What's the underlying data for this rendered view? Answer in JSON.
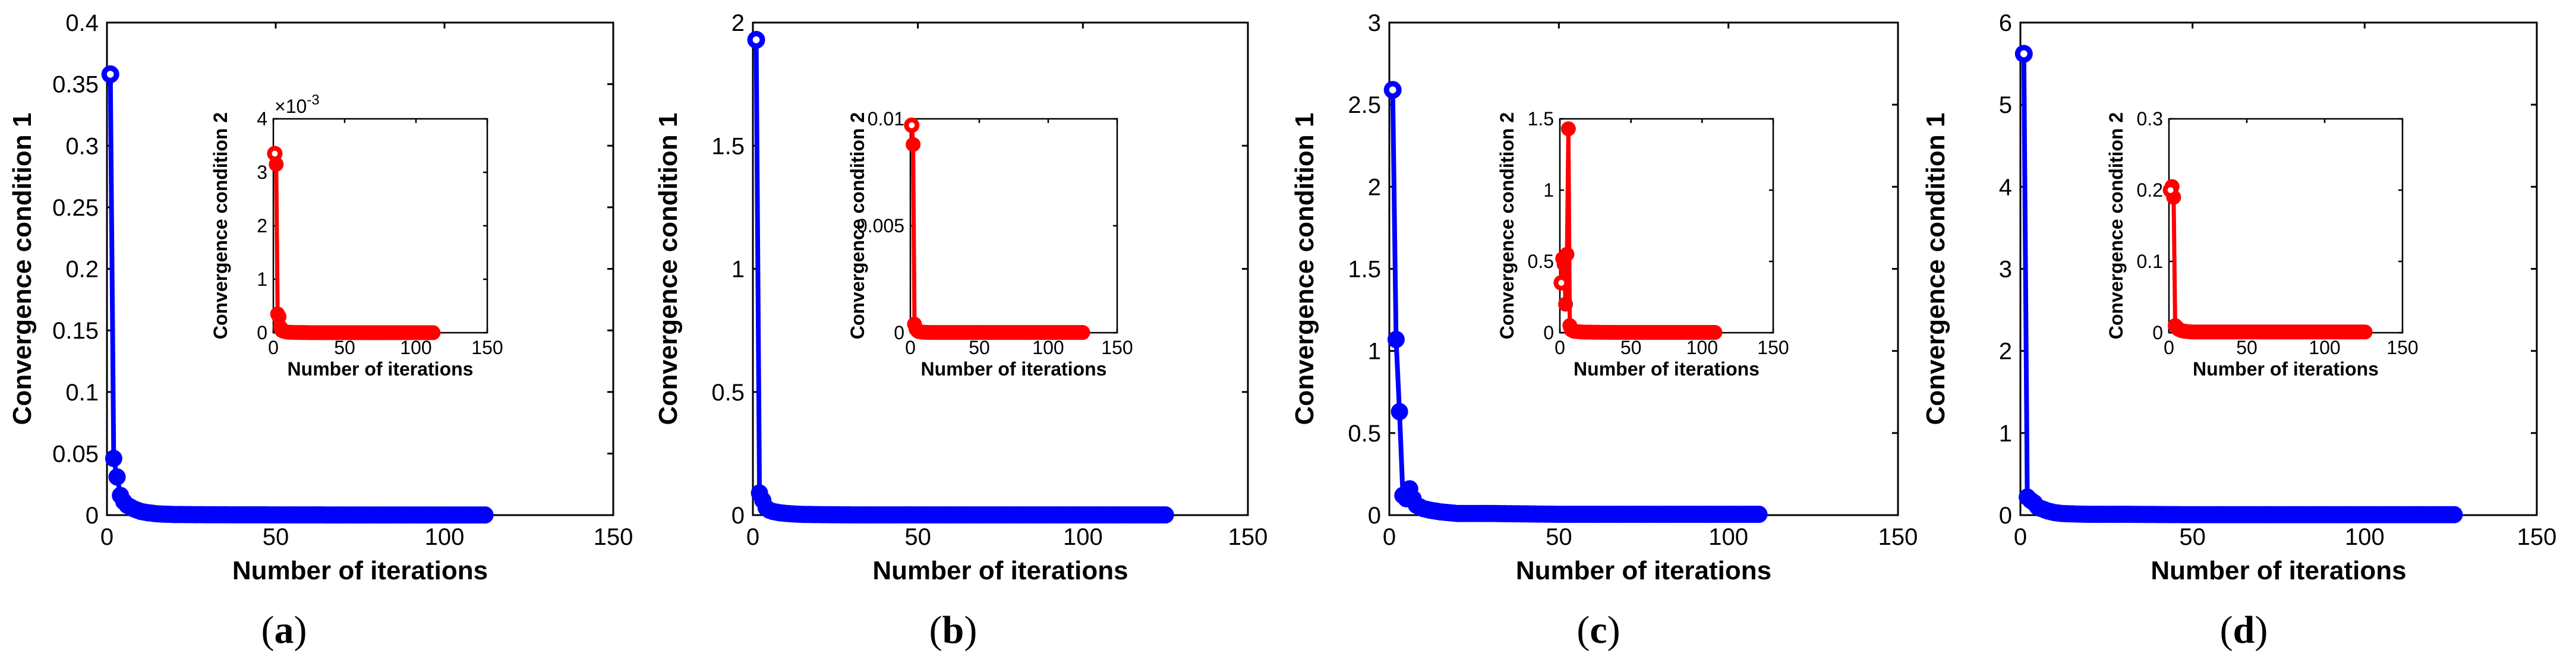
{
  "chart_data": [
    {
      "type": "line",
      "caption_letter": "a",
      "xlabel": "Number of iterations",
      "ylabel": "Convergence condition 1",
      "xlim": [
        0,
        150
      ],
      "ylim": [
        0,
        0.4
      ],
      "xticks": [
        "0",
        "50",
        "100",
        "150"
      ],
      "yticks": [
        "0",
        "0.05",
        "0.1",
        "0.15",
        "0.2",
        "0.25",
        "0.3",
        "0.35",
        "0.4"
      ],
      "series": [
        {
          "name": "Convergence condition 1",
          "color": "#0000ff",
          "x": [
            1,
            2,
            3,
            4,
            5,
            6,
            8,
            10,
            12,
            15,
            20,
            30,
            50,
            80,
            112
          ],
          "y": [
            0.358,
            0.046,
            0.031,
            0.016,
            0.011,
            0.008,
            0.005,
            0.003,
            0.002,
            0.001,
            0.0005,
            0.0003,
            0.0002,
            0.0001,
            0.0001
          ]
        }
      ],
      "inset": {
        "xlabel": "Number of iterations",
        "ylabel": "Convergence condition 2",
        "xlim": [
          0,
          150
        ],
        "ylim": [
          0,
          4
        ],
        "xticks": [
          "0",
          "50",
          "100",
          "150"
        ],
        "yticks": [
          "0",
          "1",
          "2",
          "3",
          "4"
        ],
        "exponent": "×10",
        "exponent_power": "-3",
        "series": [
          {
            "name": "Convergence condition 2",
            "color": "#ff0000",
            "x": [
              1,
              2,
              3,
              4,
              5,
              6,
              8,
              10,
              15,
              25,
              50,
              80,
              112
            ],
            "y": [
              3.35,
              3.15,
              0.35,
              0.3,
              0.1,
              0.04,
              0.02,
              0.01,
              0.005,
              0.002,
              0.001,
              0.001,
              0.001
            ]
          }
        ]
      }
    },
    {
      "type": "line",
      "caption_letter": "b",
      "xlabel": "Number of iterations",
      "ylabel": "Convergence condition 1",
      "xlim": [
        0,
        150
      ],
      "ylim": [
        0,
        2
      ],
      "xticks": [
        "0",
        "50",
        "100",
        "150"
      ],
      "yticks": [
        "0",
        "0.5",
        "1",
        "1.5",
        "2"
      ],
      "series": [
        {
          "name": "Convergence condition 1",
          "color": "#0000ff",
          "x": [
            1,
            2,
            3,
            4,
            5,
            6,
            8,
            10,
            12,
            15,
            20,
            30,
            50,
            80,
            125
          ],
          "y": [
            1.93,
            0.09,
            0.06,
            0.03,
            0.02,
            0.015,
            0.01,
            0.007,
            0.005,
            0.003,
            0.002,
            0.001,
            0.001,
            0.001,
            0.001
          ]
        }
      ],
      "inset": {
        "xlabel": "Number of iterations",
        "ylabel": "Convergence condition 2",
        "xlim": [
          0,
          150
        ],
        "ylim": [
          0,
          0.01
        ],
        "xticks": [
          "0",
          "50",
          "100",
          "150"
        ],
        "yticks": [
          "0",
          "0.005",
          "0.01"
        ],
        "exponent": "",
        "exponent_power": "",
        "series": [
          {
            "name": "Convergence condition 2",
            "color": "#ff0000",
            "x": [
              1,
              2,
              3,
              4,
              5,
              6,
              8,
              10,
              15,
              25,
              50,
              80,
              125
            ],
            "y": [
              0.0097,
              0.0088,
              0.0004,
              0.0002,
              0.0001,
              5e-05,
              3e-05,
              2e-05,
              1e-05,
              1e-05,
              1e-05,
              1e-05,
              1e-05
            ]
          }
        ]
      }
    },
    {
      "type": "line",
      "caption_letter": "c",
      "xlabel": "Number of iterations",
      "ylabel": "Convergence condition 1",
      "xlim": [
        0,
        150
      ],
      "ylim": [
        0,
        3
      ],
      "xticks": [
        "0",
        "50",
        "100",
        "150"
      ],
      "yticks": [
        "0",
        "0.5",
        "1",
        "1.5",
        "2",
        "2.5",
        "3"
      ],
      "series": [
        {
          "name": "Convergence condition 1",
          "color": "#0000ff",
          "x": [
            1,
            2,
            3,
            4,
            5,
            6,
            7,
            8,
            10,
            12,
            15,
            20,
            30,
            50,
            80,
            109
          ],
          "y": [
            2.59,
            1.07,
            0.63,
            0.12,
            0.1,
            0.16,
            0.1,
            0.06,
            0.04,
            0.03,
            0.02,
            0.01,
            0.01,
            0.005,
            0.005,
            0.005
          ]
        }
      ],
      "inset": {
        "xlabel": "Number of iterations",
        "ylabel": "Convergence condition 2",
        "xlim": [
          0,
          150
        ],
        "ylim": [
          0,
          1.5
        ],
        "xticks": [
          "0",
          "50",
          "100",
          "150"
        ],
        "yticks": [
          "0",
          "0.5",
          "1",
          "1.5"
        ],
        "exponent": "",
        "exponent_power": "",
        "series": [
          {
            "name": "Convergence condition 2",
            "color": "#ff0000",
            "x": [
              1,
              2,
              3,
              4,
              5,
              6,
              7,
              8,
              10,
              15,
              25,
              50,
              80,
              109
            ],
            "y": [
              0.35,
              0.52,
              0.48,
              0.2,
              0.55,
              1.43,
              0.05,
              0.02,
              0.01,
              0.005,
              0.003,
              0.002,
              0.002,
              0.002
            ]
          }
        ]
      }
    },
    {
      "type": "line",
      "caption_letter": "d",
      "xlabel": "Number of iterations",
      "ylabel": "Convergence condition 1",
      "xlim": [
        0,
        150
      ],
      "ylim": [
        0,
        6
      ],
      "xticks": [
        "0",
        "50",
        "100",
        "150"
      ],
      "yticks": [
        "0",
        "1",
        "2",
        "3",
        "4",
        "5",
        "6"
      ],
      "series": [
        {
          "name": "Convergence condition 1",
          "color": "#0000ff",
          "x": [
            1,
            2,
            3,
            4,
            5,
            6,
            8,
            10,
            12,
            15,
            20,
            30,
            50,
            80,
            126
          ],
          "y": [
            5.62,
            0.22,
            0.18,
            0.15,
            0.1,
            0.08,
            0.05,
            0.03,
            0.02,
            0.015,
            0.01,
            0.01,
            0.005,
            0.005,
            0.005
          ]
        }
      ],
      "inset": {
        "xlabel": "Number of iterations",
        "ylabel": "Convergence condition 2",
        "xlim": [
          0,
          150
        ],
        "ylim": [
          0,
          0.3
        ],
        "xticks": [
          "0",
          "50",
          "100",
          "150"
        ],
        "yticks": [
          "0",
          "0.1",
          "0.2",
          "0.3"
        ],
        "exponent": "",
        "exponent_power": "",
        "series": [
          {
            "name": "Convergence condition 2",
            "color": "#ff0000",
            "x": [
              1,
              2,
              3,
              4,
              5,
              6,
              8,
              10,
              15,
              25,
              50,
              80,
              126
            ],
            "y": [
              0.2,
              0.205,
              0.19,
              0.01,
              0.008,
              0.005,
              0.003,
              0.002,
              0.001,
              0.001,
              0.001,
              0.001,
              0.001
            ]
          }
        ]
      }
    }
  ]
}
